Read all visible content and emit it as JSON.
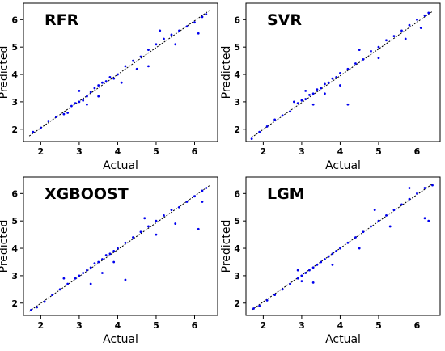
{
  "chart_data": [
    {
      "type": "scatter",
      "title": "RFR",
      "xlabel": "Actual",
      "ylabel": "Predicted",
      "xlim": [
        1.55,
        6.6
      ],
      "ylim": [
        1.55,
        6.6
      ],
      "xticks": [
        2,
        3,
        4,
        5,
        6
      ],
      "yticks": [
        2,
        3,
        4,
        5,
        6
      ],
      "fit_line": [
        [
          1.7,
          1.75
        ],
        [
          6.4,
          6.35
        ]
      ],
      "points_color": "#0000ee",
      "points": [
        [
          1.8,
          1.9
        ],
        [
          2.0,
          2.05
        ],
        [
          2.2,
          2.3
        ],
        [
          2.4,
          2.45
        ],
        [
          2.6,
          2.55
        ],
        [
          2.8,
          2.85
        ],
        [
          2.9,
          2.95
        ],
        [
          3.0,
          3.0
        ],
        [
          3.1,
          3.05
        ],
        [
          3.2,
          3.2
        ],
        [
          3.3,
          3.35
        ],
        [
          3.4,
          3.5
        ],
        [
          3.5,
          3.6
        ],
        [
          3.6,
          3.7
        ],
        [
          3.7,
          3.75
        ],
        [
          3.8,
          3.9
        ],
        [
          3.9,
          3.85
        ],
        [
          4.0,
          4.0
        ],
        [
          4.2,
          4.3
        ],
        [
          4.4,
          4.5
        ],
        [
          4.6,
          4.65
        ],
        [
          4.8,
          4.9
        ],
        [
          5.0,
          5.1
        ],
        [
          5.2,
          5.3
        ],
        [
          5.4,
          5.45
        ],
        [
          5.6,
          5.6
        ],
        [
          5.8,
          5.75
        ],
        [
          6.0,
          5.9
        ],
        [
          6.2,
          6.1
        ],
        [
          6.3,
          6.2
        ],
        [
          3.2,
          2.9
        ],
        [
          3.5,
          3.2
        ],
        [
          4.1,
          3.7
        ],
        [
          4.5,
          4.2
        ],
        [
          5.1,
          5.6
        ],
        [
          4.8,
          4.3
        ],
        [
          3.0,
          3.4
        ],
        [
          2.7,
          2.6
        ],
        [
          5.5,
          5.1
        ],
        [
          6.1,
          5.5
        ]
      ]
    },
    {
      "type": "scatter",
      "title": "SVR",
      "xlabel": "Actual",
      "ylabel": "Predicted",
      "xlim": [
        1.55,
        6.6
      ],
      "ylim": [
        1.55,
        6.6
      ],
      "xticks": [
        2,
        3,
        4,
        5,
        6
      ],
      "yticks": [
        2,
        3,
        4,
        5,
        6
      ],
      "fit_line": [
        [
          1.7,
          1.7
        ],
        [
          6.4,
          6.3
        ]
      ],
      "points_color": "#0000ee",
      "points": [
        [
          1.7,
          1.65
        ],
        [
          1.9,
          1.9
        ],
        [
          2.1,
          2.1
        ],
        [
          2.3,
          2.35
        ],
        [
          2.5,
          2.5
        ],
        [
          2.7,
          2.65
        ],
        [
          2.9,
          2.95
        ],
        [
          3.0,
          3.05
        ],
        [
          3.1,
          3.1
        ],
        [
          3.2,
          3.25
        ],
        [
          3.3,
          3.3
        ],
        [
          3.4,
          3.45
        ],
        [
          3.5,
          3.5
        ],
        [
          3.6,
          3.65
        ],
        [
          3.7,
          3.7
        ],
        [
          3.8,
          3.85
        ],
        [
          3.9,
          3.9
        ],
        [
          4.0,
          4.05
        ],
        [
          4.2,
          4.2
        ],
        [
          4.4,
          4.4
        ],
        [
          4.6,
          4.55
        ],
        [
          4.8,
          4.85
        ],
        [
          5.0,
          5.0
        ],
        [
          5.2,
          5.25
        ],
        [
          5.4,
          5.4
        ],
        [
          5.6,
          5.6
        ],
        [
          5.8,
          5.8
        ],
        [
          6.0,
          6.0
        ],
        [
          6.2,
          6.15
        ],
        [
          6.3,
          6.25
        ],
        [
          3.3,
          2.9
        ],
        [
          4.2,
          2.9
        ],
        [
          5.0,
          4.6
        ],
        [
          4.5,
          4.9
        ],
        [
          3.6,
          3.3
        ],
        [
          5.7,
          5.3
        ],
        [
          2.8,
          3.0
        ],
        [
          6.1,
          5.7
        ],
        [
          4.0,
          3.6
        ],
        [
          3.1,
          3.4
        ]
      ]
    },
    {
      "type": "scatter",
      "title": "XGBOOST",
      "xlabel": "Actual",
      "ylabel": "Predicted",
      "xlim": [
        1.55,
        6.6
      ],
      "ylim": [
        1.55,
        6.6
      ],
      "xticks": [
        2,
        3,
        4,
        5,
        6
      ],
      "yticks": [
        2,
        3,
        4,
        5,
        6
      ],
      "fit_line": [
        [
          1.7,
          1.7
        ],
        [
          6.4,
          6.3
        ]
      ],
      "points_color": "#0000ee",
      "points": [
        [
          1.75,
          1.75
        ],
        [
          1.9,
          1.85
        ],
        [
          2.1,
          2.05
        ],
        [
          2.3,
          2.3
        ],
        [
          2.5,
          2.5
        ],
        [
          2.7,
          2.7
        ],
        [
          2.9,
          2.9
        ],
        [
          3.0,
          3.0
        ],
        [
          3.1,
          3.1
        ],
        [
          3.2,
          3.2
        ],
        [
          3.3,
          3.3
        ],
        [
          3.4,
          3.45
        ],
        [
          3.5,
          3.5
        ],
        [
          3.6,
          3.6
        ],
        [
          3.7,
          3.75
        ],
        [
          3.8,
          3.8
        ],
        [
          3.9,
          3.9
        ],
        [
          4.0,
          4.0
        ],
        [
          4.2,
          4.2
        ],
        [
          4.4,
          4.4
        ],
        [
          4.6,
          4.6
        ],
        [
          4.8,
          4.8
        ],
        [
          5.0,
          5.0
        ],
        [
          5.2,
          5.2
        ],
        [
          5.4,
          5.4
        ],
        [
          5.6,
          5.5
        ],
        [
          5.8,
          5.7
        ],
        [
          6.0,
          5.9
        ],
        [
          6.2,
          6.1
        ],
        [
          6.3,
          6.2
        ],
        [
          4.2,
          2.85
        ],
        [
          3.3,
          2.7
        ],
        [
          5.5,
          4.9
        ],
        [
          6.1,
          4.7
        ],
        [
          3.6,
          3.1
        ],
        [
          4.7,
          5.1
        ],
        [
          2.6,
          2.9
        ],
        [
          5.0,
          4.5
        ],
        [
          3.9,
          3.5
        ],
        [
          6.2,
          5.7
        ]
      ]
    },
    {
      "type": "scatter",
      "title": "LGM",
      "xlabel": "Actual",
      "ylabel": "Predicted",
      "xlim": [
        1.55,
        6.6
      ],
      "ylim": [
        1.55,
        6.6
      ],
      "xticks": [
        2,
        3,
        4,
        5,
        6
      ],
      "yticks": [
        2,
        3,
        4,
        5,
        6
      ],
      "fit_line": [
        [
          1.7,
          1.75
        ],
        [
          6.4,
          6.35
        ]
      ],
      "points_color": "#0000ee",
      "points": [
        [
          1.75,
          1.8
        ],
        [
          1.9,
          1.9
        ],
        [
          2.1,
          2.1
        ],
        [
          2.3,
          2.3
        ],
        [
          2.5,
          2.5
        ],
        [
          2.7,
          2.7
        ],
        [
          2.9,
          2.9
        ],
        [
          3.0,
          3.0
        ],
        [
          3.1,
          3.1
        ],
        [
          3.2,
          3.2
        ],
        [
          3.3,
          3.3
        ],
        [
          3.4,
          3.4
        ],
        [
          3.5,
          3.5
        ],
        [
          3.6,
          3.6
        ],
        [
          3.7,
          3.7
        ],
        [
          3.8,
          3.8
        ],
        [
          3.9,
          3.9
        ],
        [
          4.0,
          4.0
        ],
        [
          4.2,
          4.2
        ],
        [
          4.4,
          4.4
        ],
        [
          4.6,
          4.6
        ],
        [
          4.8,
          4.8
        ],
        [
          5.0,
          5.0
        ],
        [
          5.2,
          5.2
        ],
        [
          5.4,
          5.4
        ],
        [
          5.6,
          5.6
        ],
        [
          5.8,
          5.8
        ],
        [
          6.0,
          6.0
        ],
        [
          6.2,
          6.2
        ],
        [
          6.4,
          6.3
        ],
        [
          3.3,
          2.75
        ],
        [
          3.0,
          2.8
        ],
        [
          6.2,
          5.1
        ],
        [
          6.3,
          5.0
        ],
        [
          4.5,
          4.0
        ],
        [
          5.8,
          6.2
        ],
        [
          3.8,
          3.4
        ],
        [
          5.3,
          4.8
        ],
        [
          2.9,
          3.2
        ],
        [
          4.9,
          5.4
        ]
      ]
    }
  ]
}
